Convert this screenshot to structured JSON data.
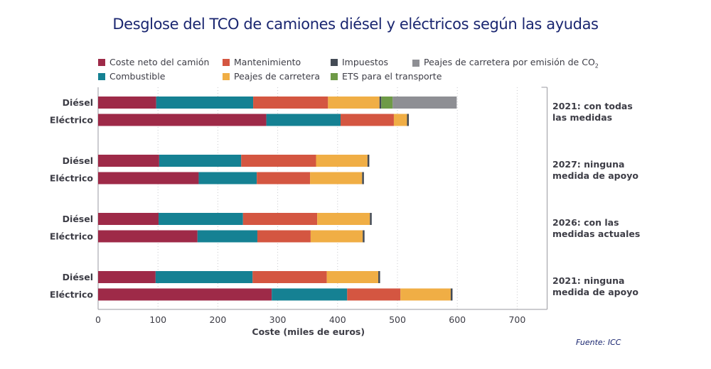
{
  "title": "Desglose del TCO de camiones diésel y eléctricos según las ayudas",
  "source": "Fuente: ICC",
  "chart_data": {
    "type": "bar",
    "orientation": "horizontal",
    "stacked": true,
    "title": "Desglose del TCO de camiones diésel y eléctricos según las ayudas",
    "xlabel": "Coste (miles de euros)",
    "ylabel": "",
    "xlim": [
      0,
      750
    ],
    "xticks": [
      0,
      100,
      200,
      300,
      400,
      500,
      600,
      700
    ],
    "grid": "vertical-dotted",
    "legend_position": "top",
    "components": [
      {
        "key": "coste_neto",
        "name": "Coste neto del camión",
        "color": "#9e2a48"
      },
      {
        "key": "combustible",
        "name": "Combustible",
        "color": "#158193"
      },
      {
        "key": "mantenimiento",
        "name": "Mantenimiento",
        "color": "#d45641"
      },
      {
        "key": "peajes",
        "name": "Peajes de carretera",
        "color": "#f0ae45"
      },
      {
        "key": "impuestos",
        "name": "Impuestos",
        "color": "#444b55"
      },
      {
        "key": "ets",
        "name": "ETS para el transporte",
        "color": "#6e9a47"
      },
      {
        "key": "peajes_co2",
        "name": "Peajes de carretera por emisión de CO",
        "name_sub": "2",
        "color": "#8e8f94"
      }
    ],
    "legend_order": [
      [
        "coste_neto",
        "mantenimiento",
        "impuestos",
        "peajes_co2"
      ],
      [
        "combustible",
        "peajes",
        "ets"
      ]
    ],
    "groups": [
      {
        "label_line1": "2021: con todas",
        "label_line2": "las medidas",
        "bars": [
          {
            "label": "Diésel",
            "values": {
              "coste_neto": 97,
              "combustible": 162,
              "mantenimiento": 125,
              "peajes": 86,
              "impuestos": 3,
              "ets": 19,
              "peajes_co2": 107
            }
          },
          {
            "label": "Eléctrico",
            "values": {
              "coste_neto": 281,
              "combustible": 124,
              "mantenimiento": 89,
              "peajes": 22,
              "impuestos": 3,
              "ets": 0,
              "peajes_co2": 0
            }
          }
        ]
      },
      {
        "label_line1": "2027: ninguna",
        "label_line2": "medida de apoyo",
        "bars": [
          {
            "label": "Diésel",
            "values": {
              "coste_neto": 102,
              "combustible": 137,
              "mantenimiento": 125,
              "peajes": 86,
              "impuestos": 3,
              "ets": 0,
              "peajes_co2": 0
            }
          },
          {
            "label": "Eléctrico",
            "values": {
              "coste_neto": 168,
              "combustible": 97,
              "mantenimiento": 89,
              "peajes": 87,
              "impuestos": 3,
              "ets": 0,
              "peajes_co2": 0
            }
          }
        ]
      },
      {
        "label_line1": "2026: con las",
        "label_line2": "medidas actuales",
        "bars": [
          {
            "label": "Diésel",
            "values": {
              "coste_neto": 101,
              "combustible": 141,
              "mantenimiento": 124,
              "peajes": 88,
              "impuestos": 3,
              "ets": 0,
              "peajes_co2": 0
            }
          },
          {
            "label": "Eléctrico",
            "values": {
              "coste_neto": 166,
              "combustible": 100,
              "mantenimiento": 89,
              "peajes": 87,
              "impuestos": 3,
              "ets": 0,
              "peajes_co2": 0
            }
          }
        ]
      },
      {
        "label_line1": "2021: ninguna",
        "label_line2": "medida de apoyo",
        "bars": [
          {
            "label": "Diésel",
            "values": {
              "coste_neto": 96,
              "combustible": 162,
              "mantenimiento": 124,
              "peajes": 86,
              "impuestos": 3,
              "ets": 0,
              "peajes_co2": 0
            }
          },
          {
            "label": "Eléctrico",
            "values": {
              "coste_neto": 290,
              "combustible": 126,
              "mantenimiento": 89,
              "peajes": 84,
              "impuestos": 3,
              "ets": 0,
              "peajes_co2": 0
            }
          }
        ]
      }
    ]
  }
}
